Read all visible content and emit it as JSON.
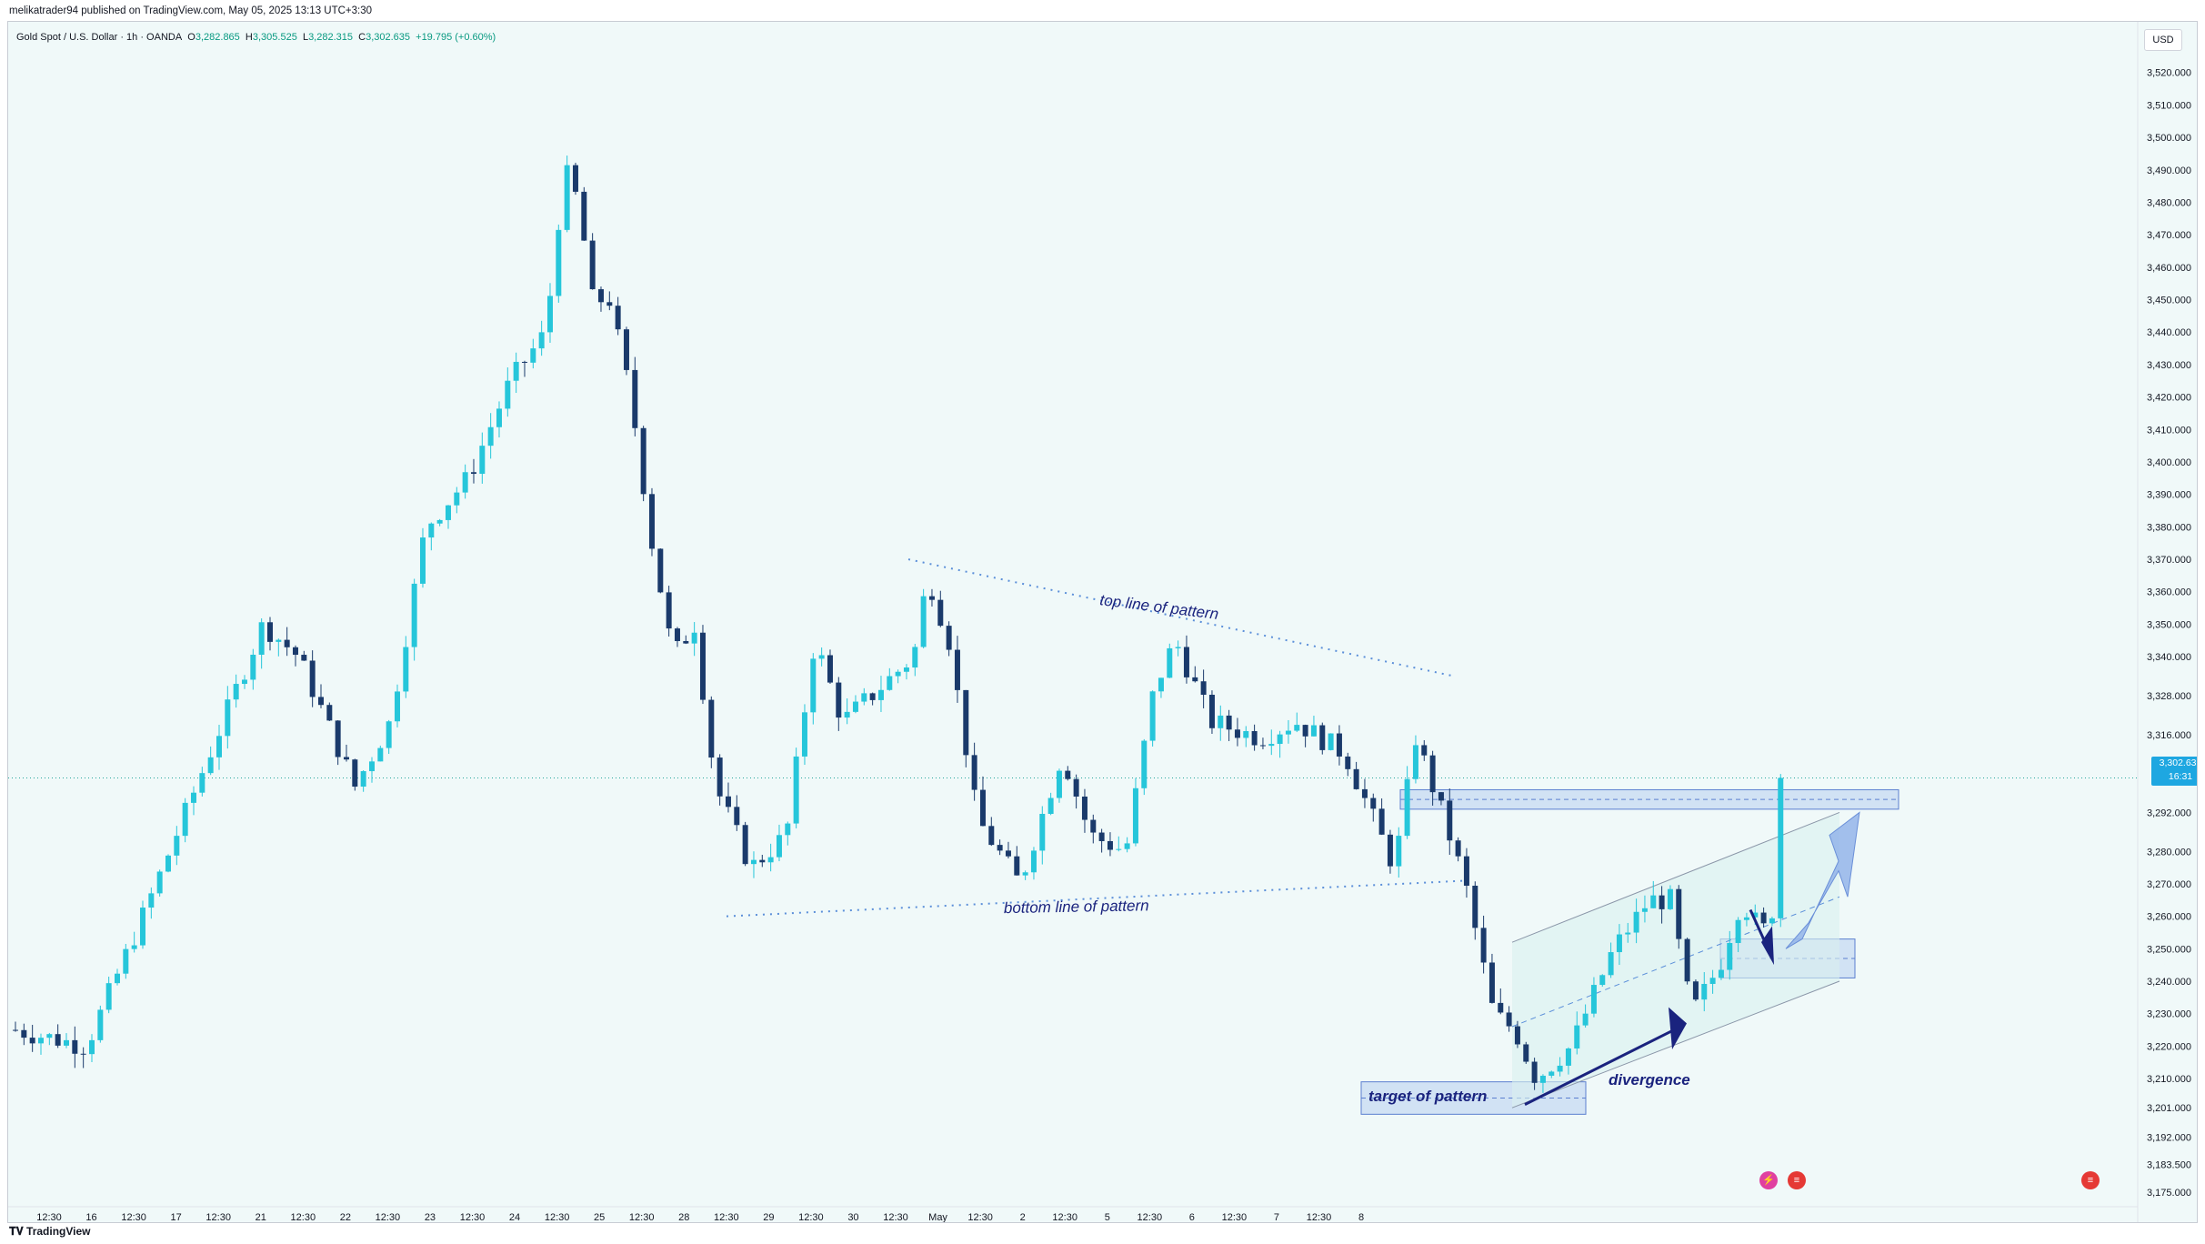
{
  "header": {
    "publisher": "melikatrader94 published on TradingView.com, May 05, 2025 13:13 UTC+3:30"
  },
  "legend": {
    "symbol": "Gold Spot / U.S. Dollar · 1h · OANDA",
    "o_label": "O",
    "o_value": "3,282.865",
    "h_label": "H",
    "h_value": "3,305.525",
    "l_label": "L",
    "l_value": "3,282.315",
    "c_label": "C",
    "c_value": "3,302.635",
    "change": "+19.795 (+0.60%)"
  },
  "currency": "USD",
  "price_tag": {
    "price": "3,302.635",
    "countdown": "16:31"
  },
  "footer": {
    "logo": "TradingView"
  },
  "colors": {
    "up": "#26c6da",
    "down": "#1a3a6b",
    "background": "#f0f9f9",
    "annotation": "#1a237e",
    "dotted_line": "#5b8fd9",
    "zone_fill": "#b8d0f0"
  },
  "icons": [
    "lightning-event-icon",
    "us-flag-event-icon",
    "us-flag-event-icon"
  ],
  "annotations": [
    {
      "text": "top line of pattern"
    },
    {
      "text": "bottom line of pattern"
    },
    {
      "text": "target of pattern"
    },
    {
      "text": "divergence"
    }
  ],
  "chart_data": {
    "type": "candlestick",
    "ylim": [
      3175,
      3530
    ],
    "y_ticks": [
      "3,520.000",
      "3,510.000",
      "3,500.000",
      "3,490.000",
      "3,480.000",
      "3,470.000",
      "3,460.000",
      "3,450.000",
      "3,440.000",
      "3,430.000",
      "3,420.000",
      "3,410.000",
      "3,400.000",
      "3,390.000",
      "3,380.000",
      "3,370.000",
      "3,360.000",
      "3,350.000",
      "3,340.000",
      "3,328.000",
      "3,316.000",
      "3,292.000",
      "3,280.000",
      "3,270.000",
      "3,260.000",
      "3,250.000",
      "3,240.000",
      "3,230.000",
      "3,220.000",
      "3,210.000",
      "3,201.000",
      "3,192.000",
      "3,183.500",
      "3,175.000"
    ],
    "x_ticks": [
      "12:30",
      "16",
      "12:30",
      "17",
      "12:30",
      "21",
      "12:30",
      "22",
      "12:30",
      "23",
      "12:30",
      "24",
      "12:30",
      "25",
      "12:30",
      "28",
      "12:30",
      "29",
      "12:30",
      "30",
      "12:30",
      "May",
      "12:30",
      "2",
      "12:30",
      "5",
      "12:30",
      "6",
      "12:30",
      "7",
      "12:30",
      "8"
    ],
    "anchors": [
      [
        0,
        3225
      ],
      [
        50,
        3220
      ],
      [
        90,
        3260
      ],
      [
        175,
        3350
      ],
      [
        200,
        3340
      ],
      [
        240,
        3300
      ],
      [
        265,
        3320
      ],
      [
        290,
        3380
      ],
      [
        320,
        3395
      ],
      [
        350,
        3425
      ],
      [
        375,
        3440
      ],
      [
        388,
        3490
      ],
      [
        398,
        3480
      ],
      [
        408,
        3450
      ],
      [
        420,
        3450
      ],
      [
        435,
        3420
      ],
      [
        450,
        3375
      ],
      [
        465,
        3340
      ],
      [
        480,
        3350
      ],
      [
        495,
        3300
      ],
      [
        520,
        3275
      ],
      [
        545,
        3285
      ],
      [
        565,
        3345
      ],
      [
        585,
        3320
      ],
      [
        610,
        3330
      ],
      [
        635,
        3340
      ],
      [
        645,
        3365
      ],
      [
        660,
        3345
      ],
      [
        680,
        3290
      ],
      [
        710,
        3270
      ],
      [
        740,
        3310
      ],
      [
        760,
        3285
      ],
      [
        785,
        3280
      ],
      [
        805,
        3330
      ],
      [
        820,
        3345
      ],
      [
        845,
        3320
      ],
      [
        880,
        3315
      ],
      [
        905,
        3320
      ],
      [
        940,
        3310
      ],
      [
        975,
        3275
      ],
      [
        990,
        3315
      ],
      [
        1010,
        3290
      ],
      [
        1025,
        3270
      ],
      [
        1045,
        3230
      ],
      [
        1060,
        3225
      ],
      [
        1075,
        3210
      ],
      [
        1100,
        3220
      ],
      [
        1130,
        3250
      ],
      [
        1155,
        3265
      ],
      [
        1170,
        3265
      ],
      [
        1185,
        3230
      ],
      [
        1205,
        3245
      ],
      [
        1220,
        3265
      ],
      [
        1235,
        3255
      ],
      [
        1245,
        3265
      ],
      [
        1252,
        3303
      ]
    ],
    "zones": [
      {
        "name": "resistance-zone",
        "y_range": [
          3293,
          3299
        ]
      },
      {
        "name": "support-zone",
        "y_range": [
          3241,
          3253
        ]
      },
      {
        "name": "target-zone",
        "y_range": [
          3199,
          3209
        ]
      }
    ],
    "last_price": 3302.635
  }
}
